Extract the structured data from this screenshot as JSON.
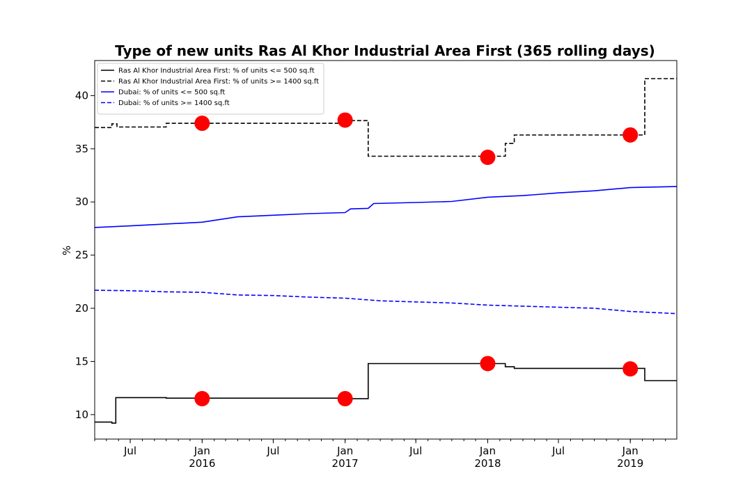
{
  "chart_data": {
    "type": "line",
    "title": "Type of new units Ras Al Khor Industrial Area First (365 rolling days)",
    "ylabel": "%",
    "xlabel": "",
    "xlim": [
      "2015-04-01",
      "2019-04-30"
    ],
    "ylim": [
      7.7,
      43.3
    ],
    "yticks": [
      10,
      15,
      20,
      25,
      30,
      35,
      40
    ],
    "xticks": [
      {
        "date": "2015-07-01",
        "label": "Jul",
        "sublabel": ""
      },
      {
        "date": "2016-01-01",
        "label": "Jan",
        "sublabel": "2016"
      },
      {
        "date": "2016-07-01",
        "label": "Jul",
        "sublabel": ""
      },
      {
        "date": "2017-01-01",
        "label": "Jan",
        "sublabel": "2017"
      },
      {
        "date": "2017-07-01",
        "label": "Jul",
        "sublabel": ""
      },
      {
        "date": "2018-01-01",
        "label": "Jan",
        "sublabel": "2018"
      },
      {
        "date": "2018-07-01",
        "label": "Jul",
        "sublabel": ""
      },
      {
        "date": "2019-01-01",
        "label": "Jan",
        "sublabel": "2019"
      }
    ],
    "legend_position": "top-left",
    "series": [
      {
        "name": "Ras Al Khor Industrial Area First: % of units <= 500 sq.ft",
        "color": "#000000",
        "dashed": false,
        "step": true,
        "points": [
          [
            "2015-04-01",
            9.3
          ],
          [
            "2015-05-15",
            9.2
          ],
          [
            "2015-05-25",
            11.6
          ],
          [
            "2015-10-01",
            11.55
          ],
          [
            "2016-12-25",
            11.5
          ],
          [
            "2017-03-01",
            14.8
          ],
          [
            "2018-02-15",
            14.5
          ],
          [
            "2018-03-10",
            14.35
          ],
          [
            "2019-02-07",
            13.2
          ],
          [
            "2019-04-30",
            13.2
          ]
        ]
      },
      {
        "name": "Ras Al Khor Industrial Area First: % of units >= 1400 sq.ft",
        "color": "#000000",
        "dashed": true,
        "step": true,
        "points": [
          [
            "2015-04-01",
            37.0
          ],
          [
            "2015-05-15",
            37.35
          ],
          [
            "2015-05-28",
            37.05
          ],
          [
            "2015-10-01",
            37.4
          ],
          [
            "2016-12-15",
            37.65
          ],
          [
            "2017-03-01",
            34.3
          ],
          [
            "2018-02-15",
            35.5
          ],
          [
            "2018-03-10",
            36.3
          ],
          [
            "2019-02-07",
            41.6
          ],
          [
            "2019-04-30",
            41.6
          ]
        ]
      },
      {
        "name": "Dubai: % of units <= 500 sq.ft",
        "color": "#0000ff",
        "dashed": false,
        "step": false,
        "points": [
          [
            "2015-04-01",
            27.6
          ],
          [
            "2015-07-01",
            27.75
          ],
          [
            "2016-01-01",
            28.1
          ],
          [
            "2016-04-01",
            28.6
          ],
          [
            "2016-07-01",
            28.75
          ],
          [
            "2016-10-01",
            28.9
          ],
          [
            "2017-01-01",
            29.0
          ],
          [
            "2017-01-15",
            29.35
          ],
          [
            "2017-03-01",
            29.4
          ],
          [
            "2017-03-15",
            29.85
          ],
          [
            "2017-07-01",
            29.95
          ],
          [
            "2017-10-01",
            30.05
          ],
          [
            "2018-01-01",
            30.45
          ],
          [
            "2018-04-01",
            30.6
          ],
          [
            "2018-07-01",
            30.85
          ],
          [
            "2018-10-01",
            31.05
          ],
          [
            "2019-01-01",
            31.35
          ],
          [
            "2019-04-30",
            31.45
          ]
        ]
      },
      {
        "name": "Dubai: % of units >= 1400 sq.ft",
        "color": "#0000ff",
        "dashed": true,
        "step": false,
        "points": [
          [
            "2015-04-01",
            21.7
          ],
          [
            "2015-07-01",
            21.65
          ],
          [
            "2015-10-01",
            21.55
          ],
          [
            "2016-01-01",
            21.5
          ],
          [
            "2016-04-01",
            21.25
          ],
          [
            "2016-07-01",
            21.2
          ],
          [
            "2016-10-01",
            21.05
          ],
          [
            "2017-01-01",
            20.95
          ],
          [
            "2017-04-01",
            20.7
          ],
          [
            "2017-07-01",
            20.6
          ],
          [
            "2017-10-01",
            20.5
          ],
          [
            "2018-01-01",
            20.3
          ],
          [
            "2018-07-01",
            20.1
          ],
          [
            "2018-10-01",
            20.0
          ],
          [
            "2019-01-01",
            19.7
          ],
          [
            "2019-04-30",
            19.5
          ]
        ]
      }
    ],
    "markers": {
      "color": "#ff0000",
      "points": [
        [
          "2016-01-01",
          11.5
        ],
        [
          "2017-01-01",
          11.5
        ],
        [
          "2018-01-01",
          14.8
        ],
        [
          "2019-01-01",
          14.3
        ],
        [
          "2016-01-01",
          37.4
        ],
        [
          "2017-01-01",
          37.7
        ],
        [
          "2018-01-01",
          34.2
        ],
        [
          "2019-01-01",
          36.3
        ]
      ]
    }
  }
}
